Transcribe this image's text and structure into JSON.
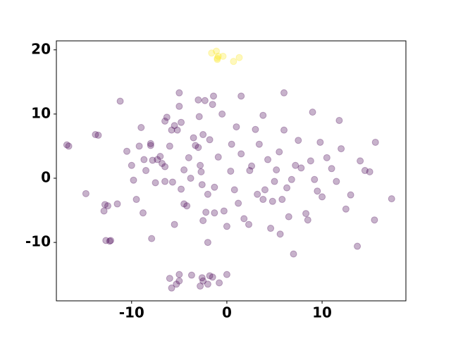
{
  "chart_data": {
    "type": "scatter",
    "xlim": [
      -17.9,
      18.8
    ],
    "ylim": [
      -19.1,
      21.4
    ],
    "xticks": [
      -10,
      0,
      10
    ],
    "yticks": [
      -10,
      0,
      10,
      20
    ],
    "series": [
      {
        "color": "#440154",
        "x": [
          -16.8,
          -16.6,
          -14.8,
          -13.8,
          -13.5,
          -12.9,
          -12.8,
          -12.7,
          -12.5,
          -12.3,
          -12.2,
          -11.5,
          -11.2,
          -10.5,
          -10.0,
          -9.8,
          -9.5,
          -9.2,
          -9.0,
          -8.8,
          -8.7,
          -8.5,
          -8.0,
          -8.0,
          -7.8,
          -7.9,
          -7.5,
          -7.3,
          -7.0,
          -6.8,
          -6.5,
          -6.5,
          -6.5,
          -6.3,
          -6.0,
          -5.8,
          -5.7,
          -5.5,
          -5.2,
          -5.0,
          -5.0,
          -4.8,
          -5.5,
          -4.8,
          -4.5,
          -4.5,
          -4.2,
          -4.0,
          -3.8,
          -3.5,
          -3.3,
          -3.0,
          -2.9,
          -3.0,
          -2.8,
          -2.7,
          -2.6,
          -2.5,
          -2.5,
          -2.3,
          -2.2,
          -2.0,
          -2.0,
          -1.8,
          -1.5,
          -1.4,
          -1.3,
          -1.3,
          -0.9,
          -0.5,
          -0.3,
          0.0,
          0.4,
          0.5,
          0.8,
          1.0,
          1.2,
          1.5,
          1.5,
          1.8,
          2.3,
          2.4,
          2.6,
          3.0,
          3.2,
          3.4,
          3.8,
          3.8,
          4.0,
          4.3,
          4.6,
          4.8,
          5.0,
          5.2,
          5.5,
          5.6,
          5.8,
          6.0,
          6.0,
          6.3,
          6.5,
          6.8,
          7.0,
          7.2,
          7.5,
          7.8,
          8.3,
          8.5,
          8.8,
          9.0,
          9.2,
          9.5,
          9.8,
          10.0,
          10.5,
          11.0,
          11.5,
          11.8,
          12.0,
          12.5,
          13.0,
          13.7,
          14.0,
          14.5,
          15.0,
          15.6,
          15.5,
          17.3,
          -5.0,
          -5.3,
          -6.0,
          -5.8,
          -5.0,
          -3.7,
          -2.8,
          -2.6,
          -2.0,
          -1.5,
          -0.8,
          0.0,
          -2.5,
          -1.8
        ],
        "y": [
          5.2,
          5.0,
          -2.4,
          6.8,
          6.7,
          -5.1,
          -4.1,
          -9.7,
          -4.3,
          -9.8,
          -9.7,
          -4.0,
          12.0,
          4.2,
          2.0,
          -0.3,
          -3.3,
          5.0,
          7.9,
          -5.4,
          2.9,
          1.2,
          5.1,
          5.4,
          2.8,
          -9.4,
          -0.7,
          2.9,
          3.4,
          2.3,
          1.8,
          -0.5,
          8.9,
          9.5,
          5.0,
          7.5,
          -0.6,
          8.2,
          7.5,
          13.3,
          11.2,
          8.7,
          -7.2,
          -1.7,
          1.3,
          -4.0,
          -4.3,
          3.2,
          0.0,
          6.3,
          5.1,
          12.2,
          9.6,
          4.8,
          2.0,
          1.0,
          -1.0,
          6.8,
          -6.6,
          12.1,
          -5.3,
          -2.5,
          -10.0,
          6.0,
          11.5,
          12.8,
          -1.4,
          -5.4,
          3.3,
          10.0,
          -5.1,
          -7.5,
          1.1,
          5.3,
          -1.8,
          8.0,
          -3.9,
          3.8,
          12.8,
          -6.3,
          -7.2,
          1.2,
          1.9,
          7.6,
          -2.5,
          5.3,
          -3.3,
          9.8,
          -1.8,
          2.9,
          -7.8,
          -3.6,
          -0.5,
          1.3,
          4.1,
          -8.7,
          -3.3,
          13.3,
          7.5,
          -1.5,
          -6.0,
          -0.2,
          -11.8,
          2.0,
          5.9,
          1.6,
          -5.5,
          -6.5,
          2.7,
          10.3,
          -0.2,
          -2.0,
          5.6,
          -2.9,
          3.2,
          1.5,
          -0.5,
          9.0,
          4.6,
          -4.8,
          -2.6,
          -10.6,
          2.7,
          1.2,
          1.0,
          5.6,
          -6.5,
          -3.2,
          -16.0,
          -16.5,
          -15.6,
          -17.1,
          -15.0,
          -15.1,
          -16.8,
          -15.5,
          -16.5,
          -15.4,
          -16.3,
          -15.0,
          -16.0,
          -15.2
        ]
      },
      {
        "color": "#fde725",
        "x": [
          -1.6,
          -1.1,
          -1.0,
          -0.9,
          -0.4,
          0.7,
          1.3,
          -1.0
        ],
        "y": [
          19.5,
          19.8,
          18.5,
          19.0,
          19.0,
          18.2,
          18.8,
          18.7
        ]
      }
    ]
  }
}
